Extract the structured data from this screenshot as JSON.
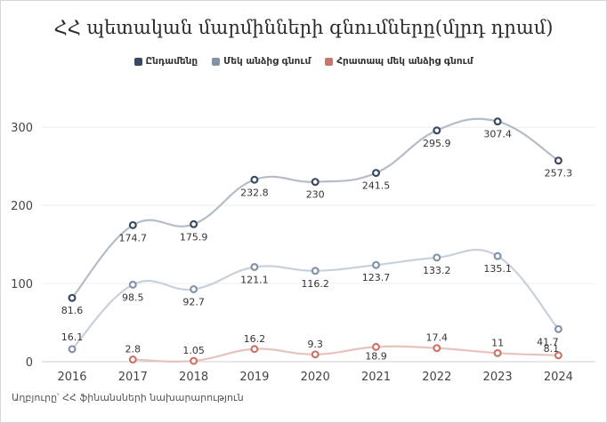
{
  "title": "ՀՀ պետական մարմինների գնումները(մլրդ դրամ)",
  "source": "Աղբյուրը՝ ՀՀ ֆինանսների նախարարություն",
  "chart_data": {
    "type": "line",
    "title": "ՀՀ պետական մարմինների գնումները(մլրդ դրամ)",
    "xlabel": "",
    "ylabel": "",
    "categories": [
      "2016",
      "2017",
      "2018",
      "2019",
      "2020",
      "2021",
      "2022",
      "2023",
      "2024"
    ],
    "ylim": [
      0,
      340
    ],
    "yticks": [
      0,
      100,
      200,
      300
    ],
    "grid": true,
    "legend_position": "top-center",
    "series": [
      {
        "name": "Ընդամենը",
        "color": "#3a4a63",
        "line_color": "#b5bcc7",
        "values": [
          81.6,
          174.7,
          175.9,
          232.8,
          230,
          241.5,
          295.9,
          307.4,
          257.3
        ],
        "labels": [
          "81.6",
          "174.7",
          "175.9",
          "232.8",
          "230",
          "241.5",
          "295.9",
          "307.4",
          "257.3"
        ]
      },
      {
        "name": "Մեկ անձից գնում",
        "color": "#8494a8",
        "line_color": "#c9d0d9",
        "values": [
          16.1,
          98.5,
          92.7,
          121.1,
          116.2,
          123.7,
          133.2,
          135.1,
          41.7
        ],
        "labels": [
          "16.1",
          "98.5",
          "92.7",
          "121.1",
          "116.2",
          "123.7",
          "133.2",
          "135.1",
          "41.7"
        ]
      },
      {
        "name": "Հրատապ մեկ անձից գնում",
        "color": "#c8766a",
        "line_color": "#e6c3bd",
        "values": [
          null,
          2.8,
          1.05,
          16.2,
          9.3,
          18.9,
          17.4,
          11,
          8.1
        ],
        "labels": [
          "",
          "2.8",
          "1.05",
          "16.2",
          "9.3",
          "18.9",
          "17.4",
          "11",
          "8.1"
        ]
      }
    ]
  }
}
